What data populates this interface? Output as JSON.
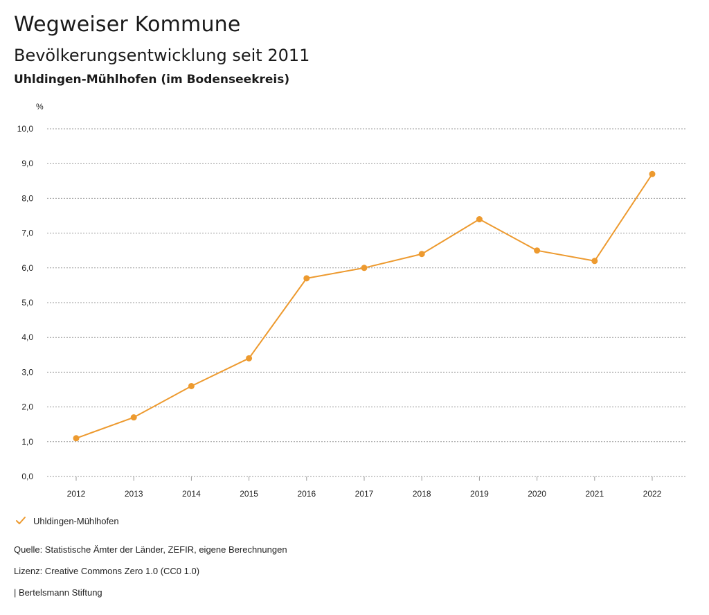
{
  "header": {
    "title": "Wegweiser Kommune",
    "subtitle": "Bevölkerungsentwicklung seit 2011",
    "region": "Uhldingen-Mühlhofen (im Bodenseekreis)"
  },
  "chart_data": {
    "type": "line",
    "ylabel": "%",
    "xlabel": "",
    "x": [
      "2012",
      "2013",
      "2014",
      "2015",
      "2016",
      "2017",
      "2018",
      "2019",
      "2020",
      "2021",
      "2022"
    ],
    "series": [
      {
        "name": "Uhldingen-Mühlhofen",
        "color": "#ed9a2f",
        "values": [
          1.1,
          1.7,
          2.6,
          3.4,
          5.7,
          6.0,
          6.4,
          7.4,
          6.5,
          6.2,
          8.7
        ]
      }
    ],
    "ylim": [
      0,
      10
    ],
    "yticks": [
      "0,0",
      "1,0",
      "2,0",
      "3,0",
      "4,0",
      "5,0",
      "6,0",
      "7,0",
      "8,0",
      "9,0",
      "10,0"
    ],
    "grid": true,
    "legend": "bottom-left"
  },
  "legend": {
    "label": "Uhldingen-Mühlhofen",
    "icon": "check-icon"
  },
  "footer": {
    "source": "Quelle: Statistische Ämter der Länder, ZEFIR, eigene Berechnungen",
    "license": "Lizenz: Creative Commons Zero 1.0 (CC0 1.0)",
    "publisher": "| Bertelsmann Stiftung"
  }
}
